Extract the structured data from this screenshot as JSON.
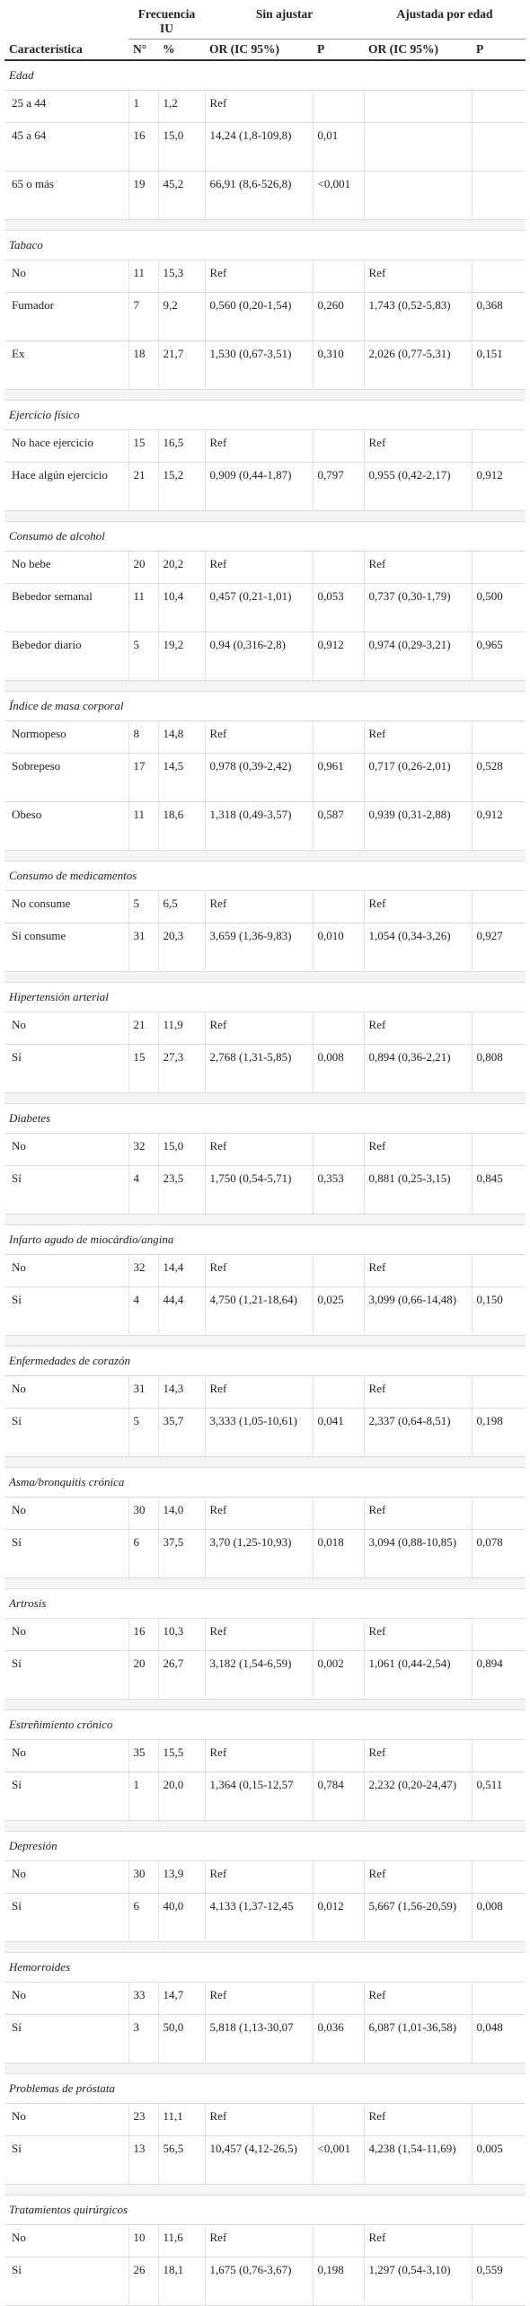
{
  "table": {
    "header": {
      "freq": "Frecuencia IU",
      "unadj": "Sin ajustar",
      "adj": "Ajustada por edad",
      "characteristic": "Característica",
      "n": "N°",
      "pct": "%",
      "or": "OR (IC 95%)",
      "p": "P",
      "or_adj": "OR (IC 95%)",
      "p_adj": "P"
    },
    "sections": [
      {
        "title": "Edad",
        "rows": [
          {
            "label": "25 a 44",
            "n": "1",
            "pct": "1,2",
            "or": "Ref"
          },
          {
            "label": "45 a 64",
            "n": "16",
            "pct": "15,0",
            "or": "14,24 (1,8-109,8)",
            "p": "0,01"
          },
          {
            "label": "65 o más",
            "n": "19",
            "pct": "45,2",
            "or": "66,91 (8,6-526,8)",
            "p": "<0,001"
          }
        ]
      },
      {
        "title": "Tabaco",
        "rows": [
          {
            "label": "No",
            "n": "11",
            "pct": "15,3",
            "or": "Ref",
            "or_adj": "Ref"
          },
          {
            "label": "Fumador",
            "n": "7",
            "pct": "9,2",
            "or": "0,560 (0,20-1,54)",
            "p": "0,260",
            "or_adj": "1,743 (0,52-5,83)",
            "p_adj": "0,368"
          },
          {
            "label": "Ex",
            "n": "18",
            "pct": "21,7",
            "or": "1,530 (0,67-3,51)",
            "p": "0,310",
            "or_adj": "2,026 (0,77-5,31)",
            "p_adj": "0,151"
          }
        ]
      },
      {
        "title": "Ejercicio físico",
        "rows": [
          {
            "label": "No hace ejercicio",
            "n": "15",
            "pct": "16,5",
            "or": "Ref",
            "or_adj": "Ref"
          },
          {
            "label": "Hace algún ejercicio",
            "n": "21",
            "pct": "15,2",
            "or": "0,909 (0,44-1,87)",
            "p": "0,797",
            "or_adj": "0,955 (0,42-2,17)",
            "p_adj": "0,912"
          }
        ]
      },
      {
        "title": "Consumo de alcohol",
        "rows": [
          {
            "label": "No bebe",
            "n": "20",
            "pct": "20,2",
            "or": "Ref",
            "or_adj": "Ref"
          },
          {
            "label": "Bebedor semanal",
            "n": "11",
            "pct": "10,4",
            "or": "0,457 (0,21-1,01)",
            "p": "0,053",
            "or_adj": "0,737 (0,30-1,79)",
            "p_adj": "0,500"
          },
          {
            "label": "Bebedor diario",
            "n": "5",
            "pct": "19,2",
            "or": "0,94 (0,316-2,8)",
            "p": "0,912",
            "or_adj": "0,974 (0,29-3,21)",
            "p_adj": "0,965"
          }
        ]
      },
      {
        "title": "Índice de masa corporal",
        "rows": [
          {
            "label": "Normopeso",
            "n": "8",
            "pct": "14,8",
            "or": "Ref",
            "or_adj": "Ref"
          },
          {
            "label": "Sobrepeso",
            "n": "17",
            "pct": "14,5",
            "or": "0,978 (0,39-2,42)",
            "p": "0,961",
            "or_adj": "0,717 (0,26-2,01)",
            "p_adj": "0,528"
          },
          {
            "label": "Obeso",
            "n": "11",
            "pct": "18,6",
            "or": "1,318 (0,49-3,57)",
            "p": "0,587",
            "or_adj": "0,939 (0,31-2,88)",
            "p_adj": "0,912"
          }
        ]
      },
      {
        "title": "Consumo de medicamentos",
        "rows": [
          {
            "label": "No consume",
            "n": "5",
            "pct": "6,5",
            "or": "Ref",
            "or_adj": "Ref"
          },
          {
            "label": "Sí consume",
            "n": "31",
            "pct": "20,3",
            "or": "3,659 (1,36-9,83)",
            "p": "0,010",
            "or_adj": "1,054 (0,34-3,26)",
            "p_adj": "0,927"
          }
        ]
      },
      {
        "title": "Hipertensión arterial",
        "rows": [
          {
            "label": "No",
            "n": "21",
            "pct": "11,9",
            "or": "Ref",
            "or_adj": "Ref"
          },
          {
            "label": "Sí",
            "n": "15",
            "pct": "27,3",
            "or": "2,768 (1,31-5,85)",
            "p": "0,008",
            "or_adj": "0,894 (0,36-2,21)",
            "p_adj": "0,808"
          }
        ]
      },
      {
        "title": "Diabetes",
        "rows": [
          {
            "label": "No",
            "n": "32",
            "pct": "15,0",
            "or": "Ref",
            "or_adj": "Ref"
          },
          {
            "label": "Sí",
            "n": "4",
            "pct": "23,5",
            "or": "1,750 (0,54-5,71)",
            "p": "0,353",
            "or_adj": "0,881 (0,25-3,15)",
            "p_adj": "0,845"
          }
        ]
      },
      {
        "title": "Infarto agudo de miocárdio/angina",
        "rows": [
          {
            "label": "No",
            "n": "32",
            "pct": "14,4",
            "or": "Ref",
            "or_adj": "Ref"
          },
          {
            "label": "Sí",
            "n": "4",
            "pct": "44,4",
            "or": "4,750 (1,21-18,64)",
            "p": "0,025",
            "or_adj": "3,099 (0,66-14,48)",
            "p_adj": "0,150"
          }
        ]
      },
      {
        "title": "Enfermedades de corazón",
        "rows": [
          {
            "label": "No",
            "n": "31",
            "pct": "14,3",
            "or": "Ref",
            "or_adj": "Ref"
          },
          {
            "label": "Sí",
            "n": "5",
            "pct": "35,7",
            "or": "3,333 (1,05-10,61)",
            "p": "0,041",
            "or_adj": "2,337 (0,64-8,51)",
            "p_adj": "0,198"
          }
        ]
      },
      {
        "title": "Asma/bronquitis crónica",
        "rows": [
          {
            "label": "No",
            "n": "30",
            "pct": "14,0",
            "or": "Ref",
            "or_adj": "Ref"
          },
          {
            "label": "Sí",
            "n": "6",
            "pct": "37,5",
            "or": "3,70 (1,25-10,93)",
            "p": "0,018",
            "or_adj": "3,094 (0,88-10,85)",
            "p_adj": "0,078"
          }
        ]
      },
      {
        "title": "Artrosis",
        "rows": [
          {
            "label": "No",
            "n": "16",
            "pct": "10,3",
            "or": "Ref",
            "or_adj": "Ref"
          },
          {
            "label": "Sí",
            "n": "20",
            "pct": "26,7",
            "or": "3,182 (1,54-6,59)",
            "p": "0,002",
            "or_adj": "1,061 (0,44-2,54)",
            "p_adj": "0,894"
          }
        ]
      },
      {
        "title": "Estreñimiento crónico",
        "rows": [
          {
            "label": "No",
            "n": "35",
            "pct": "15,5",
            "or": "Ref",
            "or_adj": "Ref"
          },
          {
            "label": "Sí",
            "n": "1",
            "pct": "20,0",
            "or": "1,364 (0,15-12,57",
            "p": "0,784",
            "or_adj": "2,232 (0,20-24,47)",
            "p_adj": "0,511"
          }
        ]
      },
      {
        "title": "Depresión",
        "rows": [
          {
            "label": "No",
            "n": "30",
            "pct": "13,9",
            "or": "Ref",
            "or_adj": "Ref"
          },
          {
            "label": "Sí",
            "n": "6",
            "pct": "40,0",
            "or": "4,133 (1,37-12,45",
            "p": "0,012",
            "or_adj": "5,667 (1,56-20,59)",
            "p_adj": "0,008"
          }
        ]
      },
      {
        "title": "Hemorroides",
        "rows": [
          {
            "label": "No",
            "n": "33",
            "pct": "14,7",
            "or": "Ref",
            "or_adj": "Ref"
          },
          {
            "label": "Sí",
            "n": "3",
            "pct": "50,0",
            "or": "5,818 (1,13-30,07",
            "p": "0,036",
            "or_adj": "6,087 (1,01-36,58)",
            "p_adj": "0,048"
          }
        ]
      },
      {
        "title": "Problemas de próstata",
        "rows": [
          {
            "label": "No",
            "n": "23",
            "pct": "11,1",
            "or": "Ref",
            "or_adj": "Ref"
          },
          {
            "label": "Sí",
            "n": "13",
            "pct": "56,5",
            "or": "10,457 (4,12-26,5)",
            "p": "<0,001",
            "or_adj": "4,238 (1,54-11,69)",
            "p_adj": "0,005"
          }
        ]
      },
      {
        "title": "Tratamientos quirúrgicos",
        "rows": [
          {
            "label": "No",
            "n": "10",
            "pct": "11,6",
            "or": "Ref",
            "or_adj": "Ref"
          },
          {
            "label": "Sí",
            "n": "26",
            "pct": "18,1",
            "or": "1,675 (0,76-3,67)",
            "p": "0,198",
            "or_adj": "1,297 (0,54-3,10)",
            "p_adj": "0,559"
          }
        ]
      }
    ]
  }
}
